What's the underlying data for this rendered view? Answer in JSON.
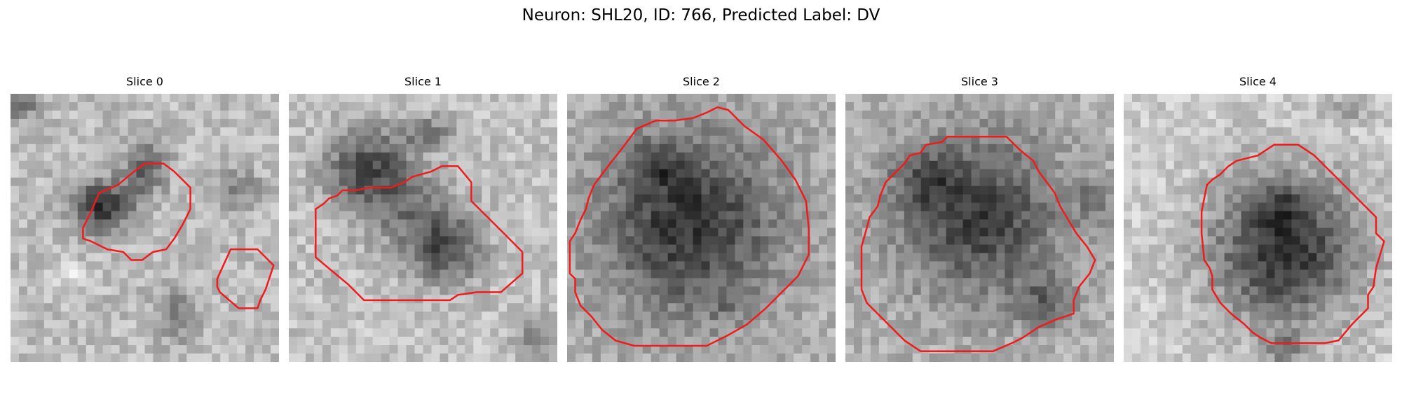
{
  "figure": {
    "title": "Neuron: SHL20, ID: 766, Predicted Label: DV"
  },
  "colors": {
    "contour": "#ee1c1c",
    "colormap": "grayscale"
  },
  "panels": [
    {
      "title": "Slice 0",
      "image_description": "grayscale microscopy slice",
      "contour_color": "red"
    },
    {
      "title": "Slice 1",
      "image_description": "grayscale microscopy slice",
      "contour_color": "red"
    },
    {
      "title": "Slice 2",
      "image_description": "grayscale microscopy slice",
      "contour_color": "red"
    },
    {
      "title": "Slice 3",
      "image_description": "grayscale microscopy slice",
      "contour_color": "red"
    },
    {
      "title": "Slice 4",
      "image_description": "grayscale microscopy slice",
      "contour_color": "red"
    }
  ]
}
